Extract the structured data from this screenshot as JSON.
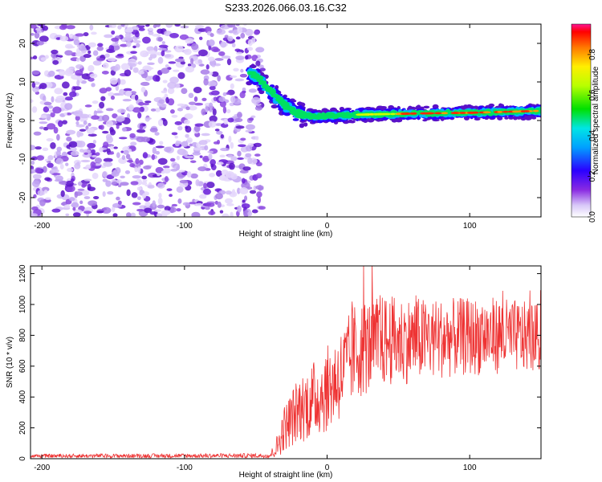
{
  "title": "S233.2026.066.03.16.C32",
  "chart_data": [
    {
      "type": "heatmap",
      "name": "spectrogram",
      "xlabel": "Height of straight line (km)",
      "ylabel": "Frequency (Hz)",
      "xlim": [
        -208,
        150
      ],
      "ylim": [
        -25,
        25
      ],
      "xticks": [
        -200,
        -100,
        0,
        100
      ],
      "yticks": [
        -20,
        -10,
        0,
        10,
        20
      ],
      "noise_region_x": [
        -208,
        -45
      ],
      "signal_trace": [
        {
          "x": -55,
          "y": 12.5
        },
        {
          "x": -48,
          "y": 11
        },
        {
          "x": -42,
          "y": 8.5
        },
        {
          "x": -36,
          "y": 6
        },
        {
          "x": -30,
          "y": 4
        },
        {
          "x": -24,
          "y": 2.5
        },
        {
          "x": -18,
          "y": 1.5
        },
        {
          "x": -10,
          "y": 1
        },
        {
          "x": 0,
          "y": 1.2
        },
        {
          "x": 20,
          "y": 1.5
        },
        {
          "x": 60,
          "y": 1.8
        },
        {
          "x": 100,
          "y": 2
        },
        {
          "x": 150,
          "y": 2.5
        }
      ],
      "colorbar": {
        "label": "Normalized spectral amplitude",
        "range": [
          0,
          0.95
        ],
        "ticks": [
          "0.0",
          "0.2",
          "0.4",
          "0.6",
          "0.8"
        ]
      }
    },
    {
      "type": "line",
      "name": "snr",
      "xlabel": "Height of straight line (km)",
      "ylabel": "SNR (10 * v/v)",
      "xlim": [
        -208,
        150
      ],
      "ylim": [
        0,
        1250
      ],
      "xticks": [
        -200,
        -100,
        0,
        100
      ],
      "yticks": [
        0,
        200,
        400,
        600,
        800,
        1000,
        1200
      ],
      "series": [
        {
          "name": "SNR",
          "color": "#ee3333",
          "envelope": [
            {
              "x": -208,
              "mean": 18,
              "spread": 12
            },
            {
              "x": -40,
              "mean": 20,
              "spread": 15
            },
            {
              "x": -35,
              "mean": 80,
              "spread": 80
            },
            {
              "x": -30,
              "mean": 200,
              "spread": 150
            },
            {
              "x": -20,
              "mean": 320,
              "spread": 220
            },
            {
              "x": -10,
              "mean": 380,
              "spread": 250
            },
            {
              "x": 0,
              "mean": 450,
              "spread": 280
            },
            {
              "x": 10,
              "mean": 550,
              "spread": 300
            },
            {
              "x": 20,
              "mean": 700,
              "spread": 320
            },
            {
              "x": 40,
              "mean": 760,
              "spread": 300
            },
            {
              "x": 80,
              "mean": 780,
              "spread": 260
            },
            {
              "x": 120,
              "mean": 800,
              "spread": 250
            },
            {
              "x": 150,
              "mean": 780,
              "spread": 220
            }
          ]
        }
      ]
    }
  ]
}
